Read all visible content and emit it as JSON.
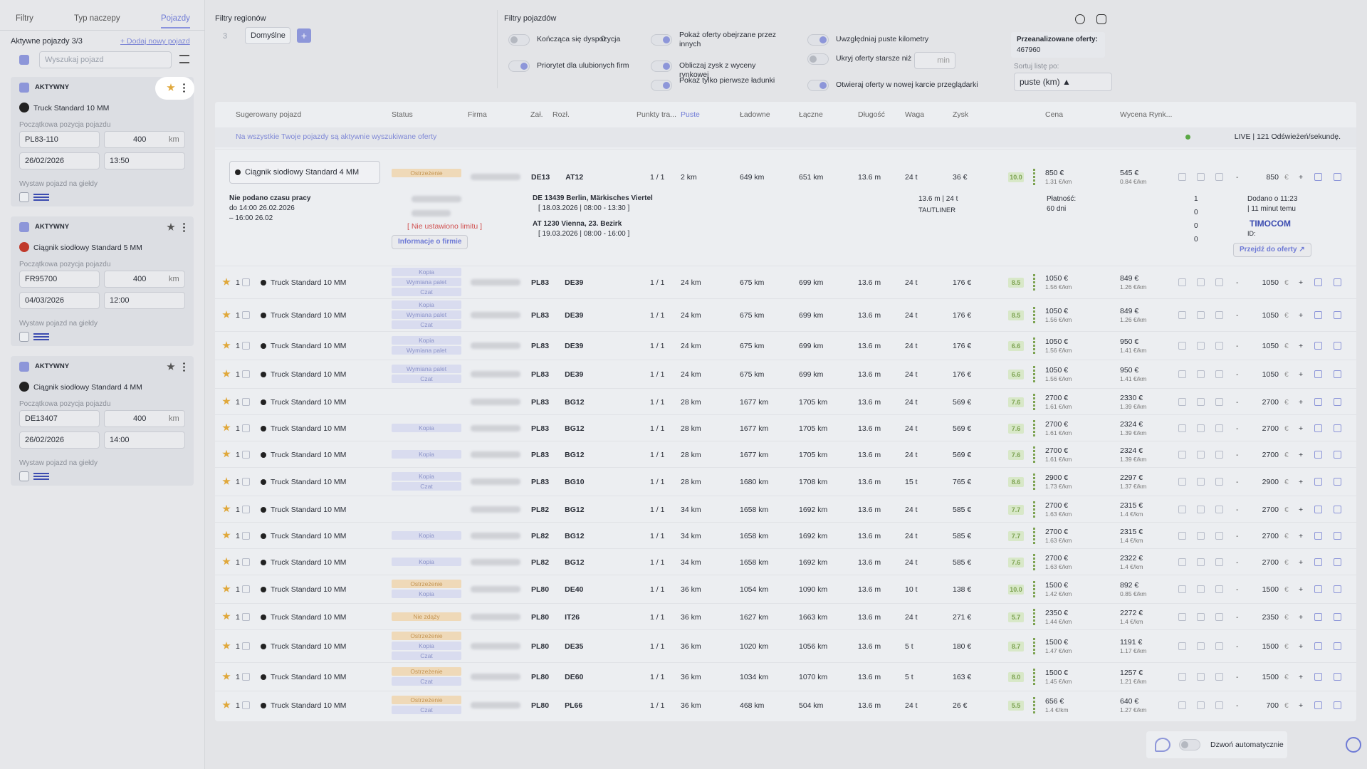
{
  "sidebar": {
    "tabs": [
      "Filtry",
      "Typ naczepy",
      "Pojazdy"
    ],
    "active_title": "Aktywne pojazdy 3/3",
    "add_link": "+ Dodaj nowy pojazd",
    "search_placeholder": "Wyszukaj pojazd",
    "vehicles": [
      {
        "status": "AKTYWNY",
        "name": "Truck Standard 10 MM",
        "position_label": "Początkowa pozycja pojazdu",
        "location": "PL83-110",
        "radius": "400",
        "unit": "km",
        "date": "26/02/2026",
        "time": "13:50",
        "exchange_label": "Wystaw pojazd na giełdy"
      },
      {
        "status": "AKTYWNY",
        "name": "Ciągnik siodłowy Standard 5 MM",
        "position_label": "Początkowa pozycja pojazdu",
        "location": "FR95700",
        "radius": "400",
        "unit": "km",
        "date": "04/03/2026",
        "time": "12:00",
        "exchange_label": "Wystaw pojazd na giełdy"
      },
      {
        "status": "AKTYWNY",
        "name": "Ciągnik siodłowy Standard 4 MM",
        "position_label": "Początkowa pozycja pojazdu",
        "location": "DE13407",
        "radius": "400",
        "unit": "km",
        "date": "26/02/2026",
        "time": "14:00",
        "exchange_label": "Wystaw pojazd na giełdy"
      }
    ]
  },
  "filters": {
    "region_title": "Filtry regionów",
    "region_count": "3",
    "region_preset": "Domyślne",
    "region_add": "+",
    "vehicle_title": "Filtry pojazdów",
    "toggles": [
      {
        "label": "Kończąca się dyspozycja",
        "on": false,
        "extra": "0"
      },
      {
        "label": "Priorytet dla ulubionych firm",
        "on": true
      },
      {
        "label": "Pokaż oferty obejrzane przez innych",
        "on": true
      },
      {
        "label": "Obliczaj zysk z wyceny rynkowej",
        "on": true
      },
      {
        "label": "Pokaż tylko pierwsze ładunki",
        "on": true
      },
      {
        "label": "Uwzględniaj puste kilometry",
        "on": true
      },
      {
        "label": "Ukryj oferty starsze niż",
        "on": false,
        "extra": "min"
      },
      {
        "label": "Otwieraj oferty w nowej karcie przeglądarki",
        "on": true
      }
    ],
    "analyzed_label": "Przeanalizowane oferty:",
    "analyzed_value": "467960",
    "sort_label": "Sortuj listę po:",
    "sort_value": "puste (km) ▲"
  },
  "table": {
    "headers": [
      "Sugerowany pojazd",
      "Status",
      "Firma",
      "Zał.",
      "Rozł.",
      "Punkty tra...",
      "Puste",
      "Ładowne",
      "Łączne",
      "Długość",
      "Waga",
      "Zysk",
      "Cena",
      "Wycena Rynk..."
    ],
    "banner": "Na wszystkie Twoje pojazdy są aktywnie wyszukiwane oferty",
    "live": "LIVE | 121 Odświeżeń/sekundę.",
    "controls": {
      "minus": "-",
      "plus": "+",
      "currency": "€"
    },
    "expanded": {
      "vehicle": "Ciągnik siodłowy Standard 4 MM",
      "tags": [
        "Ostrzeżenie"
      ],
      "from": "DE13",
      "to": "AT12",
      "trips": "1 / 1",
      "empty": "2 km",
      "loaded": "649 km",
      "total": "651 km",
      "length": "13.6 m",
      "weight": "24 t",
      "profit": "36 €",
      "score": "10.0",
      "price": "850 €",
      "price_km": "1.31 €/km",
      "market": "545 €",
      "market_km": "0.84 €/km",
      "bid": "850",
      "work_time": [
        "Nie podano czasu pracy",
        "do 14:00 26.02.2026",
        "– 16:00 26.02"
      ],
      "limit": "[ Nie ustawiono limitu ]",
      "company_info": "Informacje o firmie",
      "load_place": "DE 13439 Berlin, Märkisches Viertel",
      "load_time": "[ 18.03.2026 | 08:00 - 13:30 ]",
      "unload_place": "AT 1230 Vienna, 23. Bezirk",
      "unload_time": "[ 19.03.2026 | 08:00 - 16:00 ]",
      "size": "13.6 m | 24 t",
      "body": "TAUTLINER",
      "payment_label": "Płatność:",
      "payment": "60 dni",
      "counters": [
        "1",
        "0",
        "0",
        "0"
      ],
      "added": "Dodano o 11:23",
      "added_ago": "| 11 minut temu",
      "source": "TIMOCOM",
      "id_label": "ID:",
      "go": "Przejdź do oferty ↗"
    },
    "rows": [
      {
        "count": "1",
        "vehicle": "Truck Standard 10 MM",
        "tags": [
          "Kopia",
          "Wymiana palet",
          "Czat"
        ],
        "from": "PL83",
        "to": "DE39",
        "trips": "1 / 1",
        "empty": "24 km",
        "loaded": "675 km",
        "total": "699 km",
        "length": "13.6 m",
        "weight": "24 t",
        "profit": "176 €",
        "score": "8.5",
        "price": "1050 €",
        "price_km": "1.56 €/km",
        "market": "849 €",
        "market_km": "1.26 €/km",
        "bid": "1050"
      },
      {
        "count": "1",
        "vehicle": "Truck Standard 10 MM",
        "tags": [
          "Kopia",
          "Wymiana palet",
          "Czat"
        ],
        "from": "PL83",
        "to": "DE39",
        "trips": "1 / 1",
        "empty": "24 km",
        "loaded": "675 km",
        "total": "699 km",
        "length": "13.6 m",
        "weight": "24 t",
        "profit": "176 €",
        "score": "8.5",
        "price": "1050 €",
        "price_km": "1.56 €/km",
        "market": "849 €",
        "market_km": "1.26 €/km",
        "bid": "1050"
      },
      {
        "count": "1",
        "vehicle": "Truck Standard 10 MM",
        "tags": [
          "Kopia",
          "Wymiana palet"
        ],
        "from": "PL83",
        "to": "DE39",
        "trips": "1 / 1",
        "empty": "24 km",
        "loaded": "675 km",
        "total": "699 km",
        "length": "13.6 m",
        "weight": "24 t",
        "profit": "176 €",
        "score": "6.6",
        "price": "1050 €",
        "price_km": "1.56 €/km",
        "market": "950 €",
        "market_km": "1.41 €/km",
        "bid": "1050"
      },
      {
        "count": "1",
        "vehicle": "Truck Standard 10 MM",
        "tags": [
          "Wymiana palet",
          "Czat"
        ],
        "from": "PL83",
        "to": "DE39",
        "trips": "1 / 1",
        "empty": "24 km",
        "loaded": "675 km",
        "total": "699 km",
        "length": "13.6 m",
        "weight": "24 t",
        "profit": "176 €",
        "score": "6.6",
        "price": "1050 €",
        "price_km": "1.56 €/km",
        "market": "950 €",
        "market_km": "1.41 €/km",
        "bid": "1050"
      },
      {
        "count": "1",
        "vehicle": "Truck Standard 10 MM",
        "tags": [],
        "from": "PL83",
        "to": "BG12",
        "trips": "1 / 1",
        "empty": "28 km",
        "loaded": "1677 km",
        "total": "1705 km",
        "length": "13.6 m",
        "weight": "24 t",
        "profit": "569 €",
        "score": "7.6",
        "price": "2700 €",
        "price_km": "1.61 €/km",
        "market": "2330 €",
        "market_km": "1.39 €/km",
        "bid": "2700"
      },
      {
        "count": "1",
        "vehicle": "Truck Standard 10 MM",
        "tags": [
          "Kopia"
        ],
        "from": "PL83",
        "to": "BG12",
        "trips": "1 / 1",
        "empty": "28 km",
        "loaded": "1677 km",
        "total": "1705 km",
        "length": "13.6 m",
        "weight": "24 t",
        "profit": "569 €",
        "score": "7.6",
        "price": "2700 €",
        "price_km": "1.61 €/km",
        "market": "2324 €",
        "market_km": "1.39 €/km",
        "bid": "2700"
      },
      {
        "count": "1",
        "vehicle": "Truck Standard 10 MM",
        "tags": [
          "Kopia"
        ],
        "from": "PL83",
        "to": "BG12",
        "trips": "1 / 1",
        "empty": "28 km",
        "loaded": "1677 km",
        "total": "1705 km",
        "length": "13.6 m",
        "weight": "24 t",
        "profit": "569 €",
        "score": "7.6",
        "price": "2700 €",
        "price_km": "1.61 €/km",
        "market": "2324 €",
        "market_km": "1.39 €/km",
        "bid": "2700"
      },
      {
        "count": "1",
        "vehicle": "Truck Standard 10 MM",
        "tags": [
          "Kopia",
          "Czat"
        ],
        "from": "PL83",
        "to": "BG10",
        "trips": "1 / 1",
        "empty": "28 km",
        "loaded": "1680 km",
        "total": "1708 km",
        "length": "13.6 m",
        "weight": "15 t",
        "profit": "765 €",
        "score": "8.6",
        "price": "2900 €",
        "price_km": "1.73 €/km",
        "market": "2297 €",
        "market_km": "1.37 €/km",
        "bid": "2900"
      },
      {
        "count": "1",
        "vehicle": "Truck Standard 10 MM",
        "tags": [],
        "from": "PL82",
        "to": "BG12",
        "trips": "1 / 1",
        "empty": "34 km",
        "loaded": "1658 km",
        "total": "1692 km",
        "length": "13.6 m",
        "weight": "24 t",
        "profit": "585 €",
        "score": "7.7",
        "price": "2700 €",
        "price_km": "1.63 €/km",
        "market": "2315 €",
        "market_km": "1.4 €/km",
        "bid": "2700"
      },
      {
        "count": "1",
        "vehicle": "Truck Standard 10 MM",
        "tags": [
          "Kopia"
        ],
        "from": "PL82",
        "to": "BG12",
        "trips": "1 / 1",
        "empty": "34 km",
        "loaded": "1658 km",
        "total": "1692 km",
        "length": "13.6 m",
        "weight": "24 t",
        "profit": "585 €",
        "score": "7.7",
        "price": "2700 €",
        "price_km": "1.63 €/km",
        "market": "2315 €",
        "market_km": "1.4 €/km",
        "bid": "2700"
      },
      {
        "count": "1",
        "vehicle": "Truck Standard 10 MM",
        "tags": [
          "Kopia"
        ],
        "from": "PL82",
        "to": "BG12",
        "trips": "1 / 1",
        "empty": "34 km",
        "loaded": "1658 km",
        "total": "1692 km",
        "length": "13.6 m",
        "weight": "24 t",
        "profit": "585 €",
        "score": "7.6",
        "price": "2700 €",
        "price_km": "1.63 €/km",
        "market": "2322 €",
        "market_km": "1.4 €/km",
        "bid": "2700"
      },
      {
        "count": "1",
        "vehicle": "Truck Standard 10 MM",
        "tags": [
          "Ostrzeżenie",
          "Kopia"
        ],
        "from": "PL80",
        "to": "DE40",
        "trips": "1 / 1",
        "empty": "36 km",
        "loaded": "1054 km",
        "total": "1090 km",
        "length": "13.6 m",
        "weight": "10 t",
        "profit": "138 €",
        "score": "10.0",
        "price": "1500 €",
        "price_km": "1.42 €/km",
        "market": "892 €",
        "market_km": "0.85 €/km",
        "bid": "1500"
      },
      {
        "count": "1",
        "vehicle": "Truck Standard 10 MM",
        "tags": [
          "Nie zdąży"
        ],
        "from": "PL80",
        "to": "IT26",
        "trips": "1 / 1",
        "empty": "36 km",
        "loaded": "1627 km",
        "total": "1663 km",
        "length": "13.6 m",
        "weight": "24 t",
        "profit": "271 €",
        "score": "5.7",
        "price": "2350 €",
        "price_km": "1.44 €/km",
        "market": "2272 €",
        "market_km": "1.4 €/km",
        "bid": "2350"
      },
      {
        "count": "1",
        "vehicle": "Truck Standard 10 MM",
        "tags": [
          "Ostrzeżenie",
          "Kopia",
          "Czat"
        ],
        "from": "PL80",
        "to": "DE35",
        "trips": "1 / 1",
        "empty": "36 km",
        "loaded": "1020 km",
        "total": "1056 km",
        "length": "13.6 m",
        "weight": "5 t",
        "profit": "180 €",
        "score": "8.7",
        "price": "1500 €",
        "price_km": "1.47 €/km",
        "market": "1191 €",
        "market_km": "1.17 €/km",
        "bid": "1500"
      },
      {
        "count": "1",
        "vehicle": "Truck Standard 10 MM",
        "tags": [
          "Ostrzeżenie",
          "Czat"
        ],
        "from": "PL80",
        "to": "DE60",
        "trips": "1 / 1",
        "empty": "36 km",
        "loaded": "1034 km",
        "total": "1070 km",
        "length": "13.6 m",
        "weight": "5 t",
        "profit": "163 €",
        "score": "8.0",
        "price": "1500 €",
        "price_km": "1.45 €/km",
        "market": "1257 €",
        "market_km": "1.21 €/km",
        "bid": "1500"
      },
      {
        "count": "1",
        "vehicle": "Truck Standard 10 MM",
        "tags": [
          "Ostrzeżenie",
          "Czat"
        ],
        "from": "PL80",
        "to": "PL66",
        "trips": "1 / 1",
        "empty": "36 km",
        "loaded": "468 km",
        "total": "504 km",
        "length": "13.6 m",
        "weight": "24 t",
        "profit": "26 €",
        "score": "5.5",
        "price": "656 €",
        "price_km": "1.4 €/km",
        "market": "640 €",
        "market_km": "1.27 €/km",
        "bid": "700"
      }
    ]
  },
  "footer": {
    "auto_call": "Dzwoń automatycznie"
  }
}
